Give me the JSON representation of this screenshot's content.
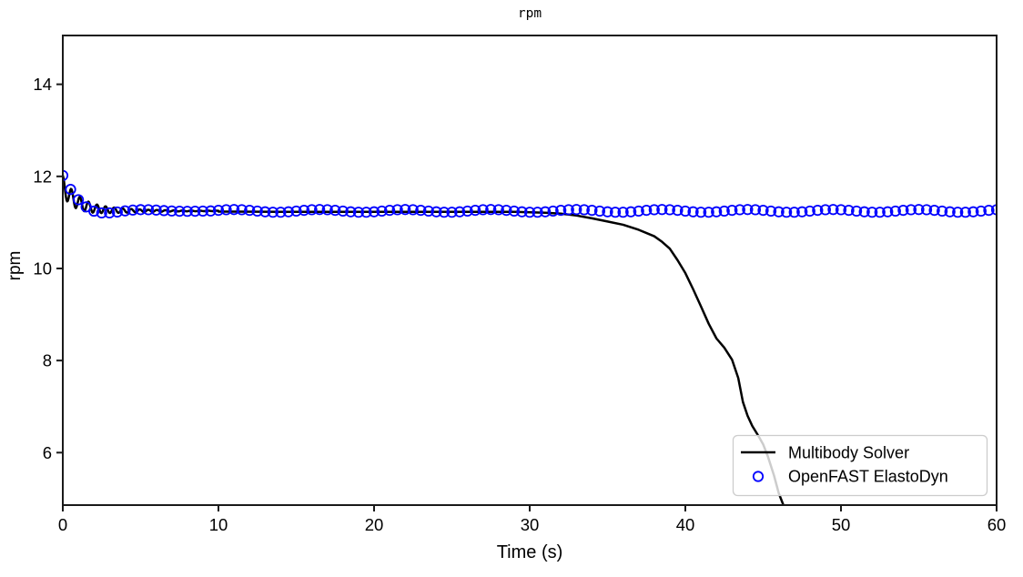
{
  "figure": {
    "background": "#ffffff",
    "spine_color": "#1a1a1a"
  },
  "chart_data": {
    "type": "line",
    "title": "rpm",
    "xlabel": "Time (s)",
    "ylabel": "rpm",
    "xlim": [
      0,
      60
    ],
    "ylim": [
      4.86,
      15.06
    ],
    "xticks": [
      0,
      10,
      20,
      30,
      40,
      50,
      60
    ],
    "yticks": [
      6,
      8,
      10,
      12,
      14
    ],
    "grid": false,
    "legend": {
      "position": "lower right",
      "frame_color": "#cccccc",
      "face_color": "#ffffff",
      "face_opacity": 0.8
    },
    "series": [
      {
        "name": "Multibody Solver",
        "plot_type": "line",
        "color": "#000000",
        "linewidth": 2.5,
        "description": "Starts at ~12 rpm, damped oscillation settling to ~11.23 rpm, flat until ~30 s, then drops steeply off the bottom of the axes near t=46.3 s",
        "model": {
          "baseline": 11.25,
          "offset_amp": 0.55,
          "offset_tau": 0.9,
          "ripple_amp": 0.22,
          "ripple_tau": 2.5,
          "ripple_period": 0.55,
          "t_model_end": 10
        },
        "keypoints": [
          [
            10,
            11.235
          ],
          [
            14,
            11.23
          ],
          [
            18,
            11.23
          ],
          [
            22,
            11.23
          ],
          [
            26,
            11.23
          ],
          [
            29,
            11.23
          ],
          [
            30,
            11.22
          ],
          [
            31,
            11.21
          ],
          [
            32,
            11.19
          ],
          [
            33,
            11.15
          ],
          [
            34,
            11.09
          ],
          [
            35,
            11.02
          ],
          [
            36,
            10.95
          ],
          [
            37,
            10.84
          ],
          [
            38,
            10.7
          ],
          [
            38.5,
            10.58
          ],
          [
            39,
            10.43
          ],
          [
            39.5,
            10.18
          ],
          [
            40,
            9.9
          ],
          [
            40.5,
            9.55
          ],
          [
            41,
            9.18
          ],
          [
            41.5,
            8.8
          ],
          [
            42,
            8.48
          ],
          [
            42.5,
            8.28
          ],
          [
            43,
            8.02
          ],
          [
            43.4,
            7.62
          ],
          [
            43.7,
            7.1
          ],
          [
            44,
            6.8
          ],
          [
            44.3,
            6.58
          ],
          [
            44.7,
            6.36
          ],
          [
            45,
            6.18
          ],
          [
            45.3,
            5.92
          ],
          [
            45.7,
            5.5
          ],
          [
            46,
            5.12
          ],
          [
            46.3,
            4.86
          ]
        ]
      },
      {
        "name": "OpenFAST ElastoDyn",
        "plot_type": "scatter",
        "color": "#0000ff",
        "marker": "circle-open",
        "marker_radius": 5.2,
        "marker_stroke": 1.8,
        "t_start": 0,
        "t_end": 60,
        "dt": 0.5,
        "steady_value": 11.25,
        "steady_ripple": 0.03,
        "description": "Open blue circles every 0.5 s following the same damped start, then constant ~11.25 rpm through t=60 s"
      }
    ]
  }
}
